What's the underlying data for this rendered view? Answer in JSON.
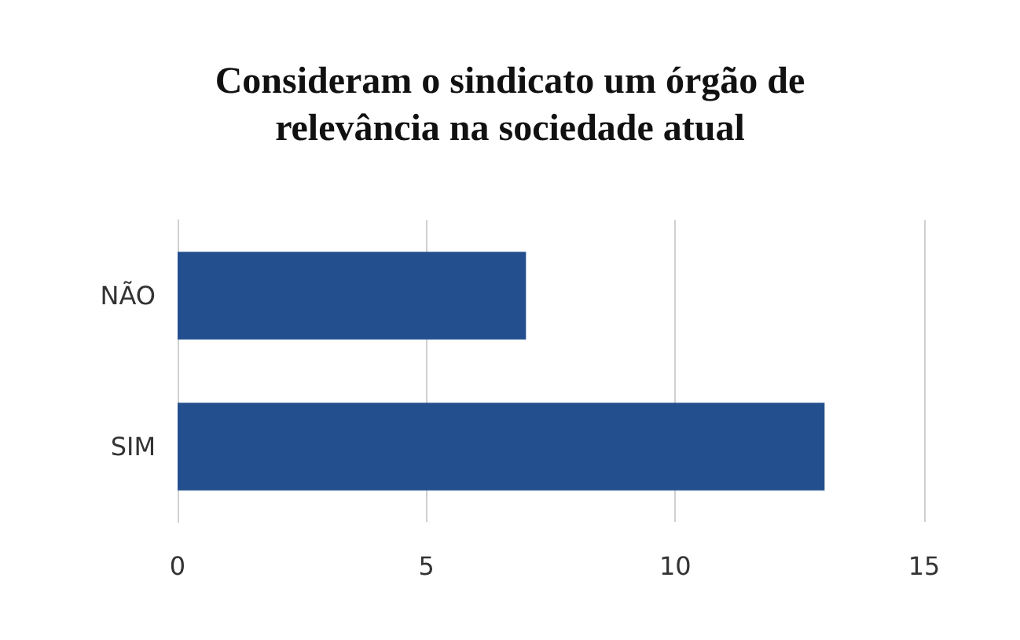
{
  "chart_data": {
    "type": "bar",
    "orientation": "horizontal",
    "title": "Consideram o sindicato um órgão de\nrelevância na sociedade atual",
    "categories": [
      "NÃO",
      "SIM"
    ],
    "values": [
      7,
      13
    ],
    "color": "#234f8e",
    "xlim": [
      0,
      15
    ],
    "xticks": [
      0,
      5,
      10,
      15
    ],
    "grid": "x"
  }
}
